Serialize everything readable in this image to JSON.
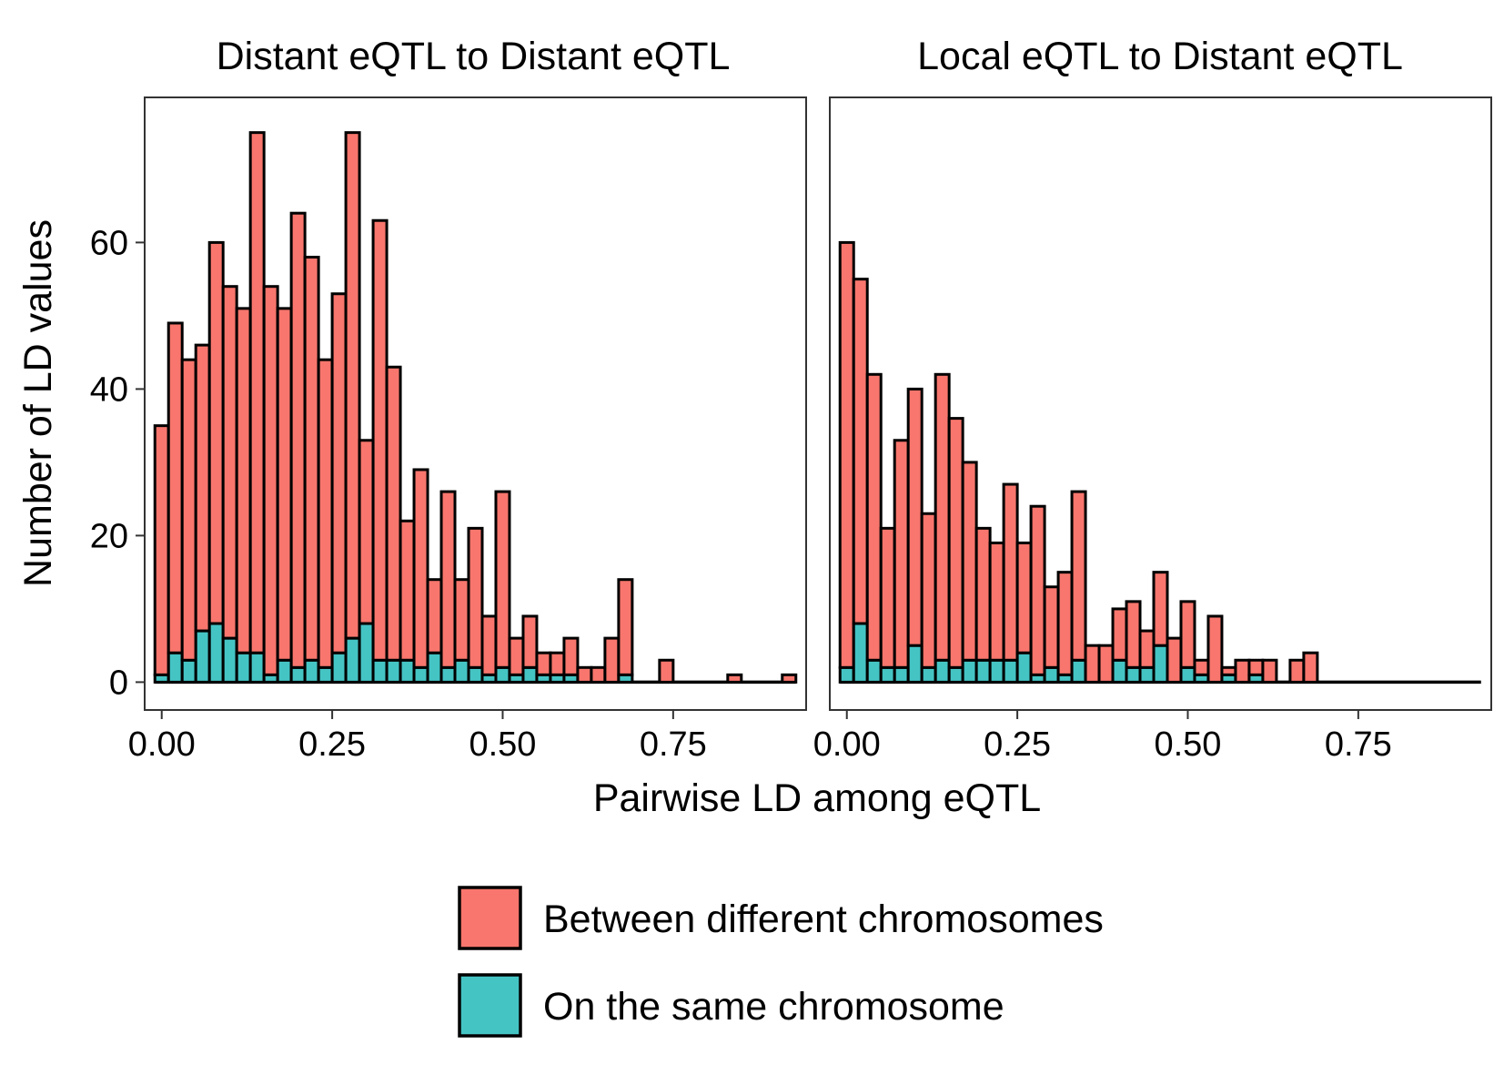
{
  "chart_data": {
    "type": "bar",
    "stacked": true,
    "ylabel": "Number of LD values",
    "xlabel": "Pairwise LD among eQTL",
    "xlim": [
      -0.025,
      0.945
    ],
    "ylim": [
      -3.8,
      79.8
    ],
    "x_ticks": [
      0.0,
      0.25,
      0.5,
      0.75
    ],
    "x_tick_labels": [
      "0.00",
      "0.25",
      "0.50",
      "0.75"
    ],
    "y_ticks": [
      0,
      20,
      40,
      60
    ],
    "y_tick_labels": [
      "0",
      "20",
      "40",
      "60"
    ],
    "bin_width": 0.02,
    "grid": false,
    "legend": {
      "position": "bottom",
      "entries": [
        {
          "label": "Between different chromosomes",
          "color": "#F8766D"
        },
        {
          "label": "On the same chromosome",
          "color": "#45C4C4"
        }
      ]
    },
    "panels": [
      {
        "title": "Distant eQTL to Distant eQTL",
        "x": [
          0.0,
          0.02,
          0.04,
          0.06,
          0.08,
          0.1,
          0.12,
          0.14,
          0.16,
          0.18,
          0.2,
          0.22,
          0.24,
          0.26,
          0.28,
          0.3,
          0.32,
          0.34,
          0.36,
          0.38,
          0.4,
          0.42,
          0.44,
          0.46,
          0.48,
          0.5,
          0.52,
          0.54,
          0.56,
          0.58,
          0.6,
          0.62,
          0.64,
          0.66,
          0.68,
          0.7,
          0.72,
          0.74,
          0.76,
          0.78,
          0.8,
          0.82,
          0.84,
          0.86,
          0.88,
          0.9,
          0.92
        ],
        "series": [
          {
            "name": "Between different chromosomes",
            "values": [
              34,
              45,
              41,
              39,
              52,
              48,
              47,
              71,
              53,
              48,
              62,
              55,
              42,
              49,
              69,
              25,
              60,
              40,
              19,
              27,
              10,
              24,
              11,
              19,
              8,
              24,
              5,
              7,
              3,
              3,
              5,
              2,
              2,
              6,
              13,
              0,
              0,
              3,
              0,
              0,
              0,
              0,
              1,
              0,
              0,
              0,
              1
            ]
          },
          {
            "name": "On the same chromosome",
            "values": [
              1,
              4,
              3,
              7,
              8,
              6,
              4,
              4,
              1,
              3,
              2,
              3,
              2,
              4,
              6,
              8,
              3,
              3,
              3,
              2,
              4,
              2,
              3,
              2,
              1,
              2,
              1,
              2,
              1,
              1,
              1,
              0,
              0,
              0,
              1,
              0,
              0,
              0,
              0,
              0,
              0,
              0,
              0,
              0,
              0,
              0,
              0
            ]
          }
        ]
      },
      {
        "title": "Local eQTL to Distant eQTL",
        "x": [
          0.0,
          0.02,
          0.04,
          0.06,
          0.08,
          0.1,
          0.12,
          0.14,
          0.16,
          0.18,
          0.2,
          0.22,
          0.24,
          0.26,
          0.28,
          0.3,
          0.32,
          0.34,
          0.36,
          0.38,
          0.4,
          0.42,
          0.44,
          0.46,
          0.48,
          0.5,
          0.52,
          0.54,
          0.56,
          0.58,
          0.6,
          0.62,
          0.64,
          0.66,
          0.68,
          0.7,
          0.72,
          0.74,
          0.76,
          0.78,
          0.8,
          0.82,
          0.84,
          0.86,
          0.88,
          0.9,
          0.92
        ],
        "series": [
          {
            "name": "Between different chromosomes",
            "values": [
              58,
              47,
              39,
              19,
              31,
              35,
              21,
              39,
              34,
              27,
              18,
              16,
              24,
              15,
              23,
              11,
              14,
              23,
              5,
              5,
              7,
              9,
              5,
              10,
              6,
              9,
              2,
              9,
              1,
              3,
              2,
              3,
              0,
              3,
              4,
              0,
              0,
              0,
              0,
              0,
              0,
              0,
              0,
              0,
              0,
              0,
              0
            ]
          },
          {
            "name": "On the same chromosome",
            "values": [
              2,
              8,
              3,
              2,
              2,
              5,
              2,
              3,
              2,
              3,
              3,
              3,
              3,
              4,
              1,
              2,
              1,
              3,
              0,
              0,
              3,
              2,
              2,
              5,
              0,
              2,
              1,
              0,
              1,
              0,
              1,
              0,
              0,
              0,
              0,
              0,
              0,
              0,
              0,
              0,
              0,
              0,
              0,
              0,
              0,
              0,
              0
            ]
          }
        ]
      }
    ]
  }
}
